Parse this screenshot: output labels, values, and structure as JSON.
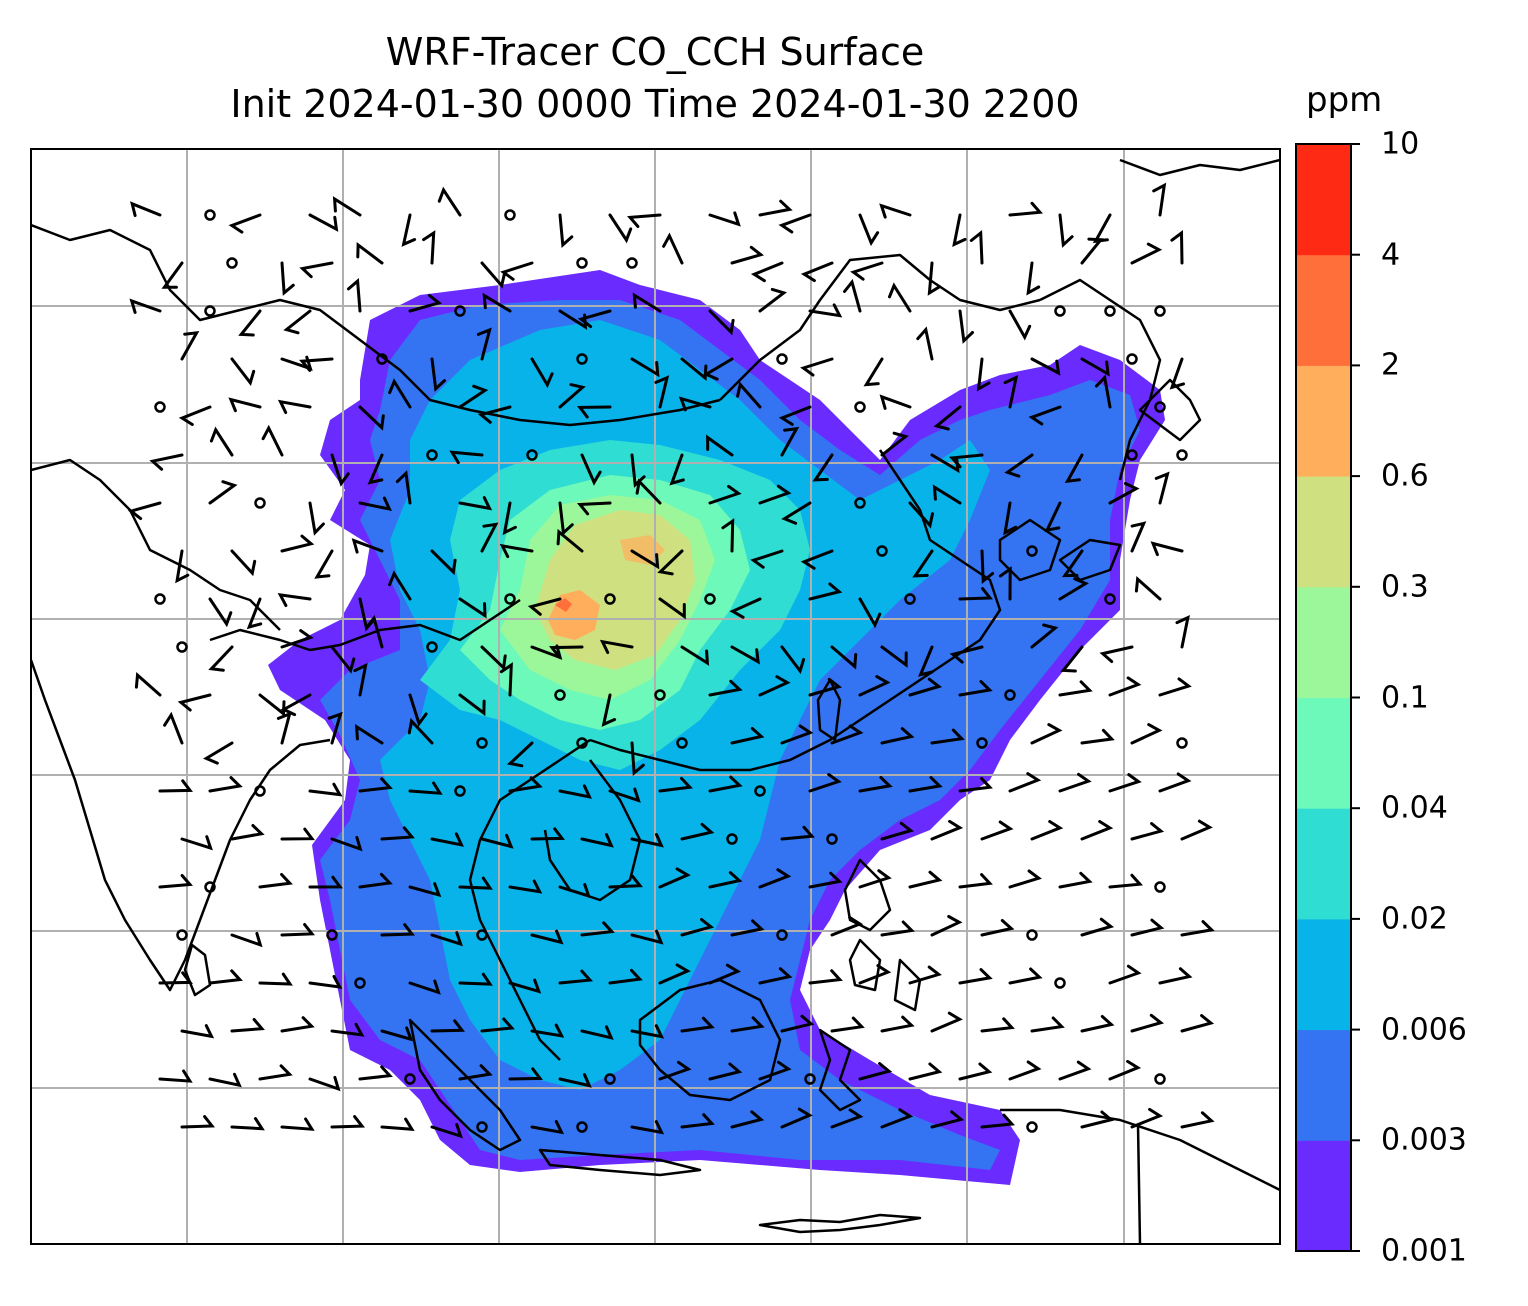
{
  "title": {
    "line1": "WRF-Tracer CO_CCH Surface",
    "line2": "Init 2024-01-30 0000 Time 2024-01-30 2200"
  },
  "colorbar": {
    "units": "ppm",
    "levels": [
      "0.001",
      "0.003",
      "0.006",
      "0.02",
      "0.04",
      "0.1",
      "0.3",
      "0.6",
      "2",
      "4",
      "10"
    ],
    "colors": [
      "#6a2bff",
      "#3473f2",
      "#08b3ea",
      "#30ddd2",
      "#6cf9b9",
      "#9cf79a",
      "#cfe081",
      "#ffae5c",
      "#ff6f3a",
      "#ff2a14"
    ]
  },
  "map": {
    "features": [
      "coastlines",
      "country-borders",
      "gridlines",
      "wind-barbs",
      "tracer-concentration-field"
    ]
  }
}
